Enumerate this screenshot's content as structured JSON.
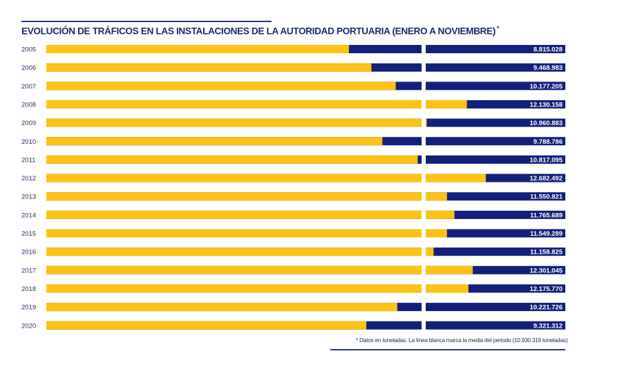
{
  "chart_data": {
    "type": "bar",
    "orientation": "horizontal",
    "title": "EVOLUCIÓN DE TRÁFICOS EN LAS INSTALACIONES DE LA AUTORIDAD PORTUARIA (ENERO A NOVIEMBRE)",
    "title_marker": "*",
    "footnote": "* Datos en toneladas. La línea blanca marca la media del periodo (10.930.319 toneladas)",
    "unit": "toneladas",
    "mean": 10930319,
    "mean_label": "10.930.319",
    "right_panel_max": 15000000,
    "colors": {
      "value": "#fbc315",
      "background": "#13207a",
      "text": "#1d2a6b"
    },
    "categories": [
      "2005",
      "2006",
      "2007",
      "2008",
      "2009",
      "2010",
      "2011",
      "2012",
      "2013",
      "2014",
      "2015",
      "2016",
      "2017",
      "2018",
      "2019",
      "2020"
    ],
    "values": [
      8815028,
      9468983,
      10177205,
      12130158,
      10960883,
      9788786,
      10817095,
      12682492,
      11550821,
      11765689,
      11549289,
      11158825,
      12301045,
      12175770,
      10221726,
      9321312
    ],
    "value_labels": [
      "8.815.028",
      "9.468.983",
      "10.177.205",
      "12.130.158",
      "10.960.883",
      "9.788.786",
      "10.817.095",
      "12.682.492",
      "11.550.821",
      "11.765.689",
      "11.549.289",
      "11.158.825",
      "12.301.045",
      "12.175.770",
      "10.221.726",
      "9.321.312"
    ],
    "xlabel": "",
    "ylabel": ""
  }
}
